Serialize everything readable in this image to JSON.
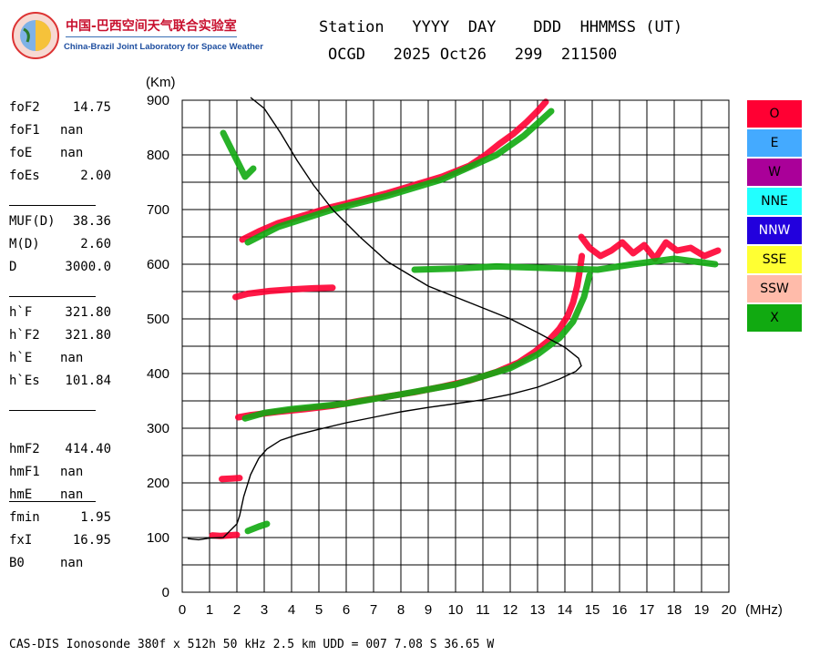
{
  "logo": {
    "org_name_cn": "中国-巴西空间天气联合实验室",
    "org_name_en": "China-Brazil Joint Laboratory for Space Weather"
  },
  "header": {
    "line1": "Station   YYYY  DAY    DDD  HHMMSS (UT)",
    "line2": "OCGD   2025 Oct26   299  211500"
  },
  "parameters": {
    "group1": [
      {
        "key": "foF2",
        "value": "14.75"
      },
      {
        "key": "foF1",
        "value": "nan"
      },
      {
        "key": "foE",
        "value": "nan"
      },
      {
        "key": "foEs",
        "value": "2.00"
      }
    ],
    "group2": [
      {
        "key": "MUF(D)",
        "value": "38.36"
      },
      {
        "key": "M(D)",
        "value": "2.60"
      },
      {
        "key": "D",
        "value": "3000.0"
      }
    ],
    "group3": [
      {
        "key": "h`F",
        "value": "321.80"
      },
      {
        "key": "h`F2",
        "value": "321.80"
      },
      {
        "key": "h`E",
        "value": "nan"
      },
      {
        "key": "h`Es",
        "value": "101.84"
      }
    ],
    "group4": [
      {
        "key": "hmF2",
        "value": "414.40"
      },
      {
        "key": "hmF1",
        "value": "nan"
      },
      {
        "key": "hmE",
        "value": "nan"
      }
    ],
    "group5": [
      {
        "key": "fmin",
        "value": "1.95"
      },
      {
        "key": "fxI",
        "value": "16.95"
      },
      {
        "key": "B0",
        "value": "nan"
      }
    ]
  },
  "legend": [
    {
      "label": "O",
      "color": "#ff0033"
    },
    {
      "label": "E",
      "color": "#44aaff"
    },
    {
      "label": "W",
      "color": "#aa0099"
    },
    {
      "label": "NNE",
      "color": "#22ffff"
    },
    {
      "label": "NNW",
      "color": "#2200dd"
    },
    {
      "label": "SSE",
      "color": "#ffff33"
    },
    {
      "label": "SSW",
      "color": "#ffbbaa"
    },
    {
      "label": "X",
      "color": "#11aa11"
    }
  ],
  "footer": "CAS-DIS Ionosonde 380f x 512h 50 kHz 2.5 km UDD = 007 7.08 S 36.65 W",
  "chart_data": {
    "type": "scatter",
    "ylabel": "(Km)",
    "xlabel": "(MHz)",
    "xlim": [
      0,
      20
    ],
    "ylim": [
      0,
      900
    ],
    "x_ticks": [
      0,
      1,
      2,
      3,
      4,
      5,
      6,
      7,
      8,
      9,
      10,
      11,
      12,
      13,
      14,
      15,
      16,
      17,
      18,
      19,
      20
    ],
    "y_ticks": [
      0,
      100,
      200,
      300,
      400,
      500,
      600,
      700,
      800,
      900
    ],
    "grid": true,
    "series": [
      {
        "name": "O",
        "color": "#ff0033",
        "traces": [
          [
            [
              1.1,
              104
            ],
            [
              1.4,
              103
            ],
            [
              1.7,
              104
            ],
            [
              2.0,
              105
            ]
          ],
          [
            [
              1.45,
              207
            ],
            [
              1.8,
              208
            ],
            [
              2.1,
              209
            ]
          ],
          [
            [
              1.95,
              540
            ],
            [
              2.4,
              546
            ],
            [
              3.2,
              551
            ],
            [
              4.0,
              554
            ],
            [
              4.8,
              556
            ],
            [
              5.5,
              557
            ]
          ],
          [
            [
              2.05,
              320
            ],
            [
              2.5,
              324
            ],
            [
              3.5,
              330
            ],
            [
              4.5,
              335
            ],
            [
              5.5,
              341
            ],
            [
              6.5,
              350
            ],
            [
              7.5,
              358
            ],
            [
              8.5,
              366
            ],
            [
              9.5,
              376
            ],
            [
              10.5,
              387
            ],
            [
              11.5,
              403
            ],
            [
              12.3,
              420
            ],
            [
              12.9,
              440
            ],
            [
              13.4,
              460
            ],
            [
              13.8,
              482
            ],
            [
              14.1,
              505
            ],
            [
              14.3,
              530
            ],
            [
              14.45,
              560
            ],
            [
              14.55,
              590
            ],
            [
              14.62,
              615
            ]
          ],
          [
            [
              2.2,
              645
            ],
            [
              2.8,
              660
            ],
            [
              3.5,
              675
            ],
            [
              4.5,
              690
            ],
            [
              5.5,
              705
            ],
            [
              6.5,
              717
            ],
            [
              7.5,
              730
            ],
            [
              8.5,
              745
            ],
            [
              9.5,
              760
            ],
            [
              10.5,
              780
            ],
            [
              11.1,
              800
            ],
            [
              11.6,
              820
            ],
            [
              12.1,
              838
            ],
            [
              12.6,
              860
            ],
            [
              13.0,
              880
            ],
            [
              13.3,
              897
            ]
          ],
          [
            [
              14.6,
              650
            ],
            [
              14.9,
              630
            ],
            [
              15.3,
              615
            ],
            [
              15.7,
              625
            ],
            [
              16.1,
              640
            ],
            [
              16.5,
              620
            ],
            [
              16.9,
              635
            ],
            [
              17.3,
              610
            ],
            [
              17.7,
              640
            ],
            [
              18.1,
              625
            ],
            [
              18.6,
              630
            ],
            [
              19.1,
              615
            ],
            [
              19.6,
              625
            ]
          ]
        ]
      },
      {
        "name": "X",
        "color": "#11aa11",
        "traces": [
          [
            [
              1.5,
              840
            ],
            [
              2.3,
              760
            ],
            [
              2.6,
              775
            ]
          ],
          [
            [
              2.4,
              112
            ],
            [
              2.8,
              120
            ],
            [
              3.1,
              125
            ]
          ],
          [
            [
              2.3,
              318
            ],
            [
              3.0,
              328
            ],
            [
              4.0,
              335
            ],
            [
              6.0,
              345
            ],
            [
              8.0,
              362
            ],
            [
              10.0,
              380
            ],
            [
              12.0,
              410
            ],
            [
              13.0,
              435
            ],
            [
              13.8,
              465
            ],
            [
              14.3,
              495
            ],
            [
              14.7,
              540
            ],
            [
              14.9,
              580
            ]
          ],
          [
            [
              2.4,
              640
            ],
            [
              3.5,
              668
            ],
            [
              5.5,
              700
            ],
            [
              7.5,
              725
            ],
            [
              9.5,
              755
            ],
            [
              11.5,
              800
            ],
            [
              12.5,
              835
            ],
            [
              13.5,
              880
            ]
          ],
          [
            [
              8.5,
              590
            ],
            [
              10.0,
              592
            ],
            [
              11.5,
              596
            ],
            [
              15.2,
              590
            ],
            [
              16.5,
              600
            ],
            [
              18.0,
              610
            ],
            [
              19.5,
              600
            ]
          ]
        ]
      }
    ],
    "profile_curve": [
      [
        0.2,
        98
      ],
      [
        0.6,
        96
      ],
      [
        1.0,
        99
      ],
      [
        1.5,
        100
      ],
      [
        1.7,
        110
      ],
      [
        2.0,
        125
      ],
      [
        2.1,
        140
      ],
      [
        2.25,
        175
      ],
      [
        2.5,
        215
      ],
      [
        2.8,
        245
      ],
      [
        3.1,
        262
      ],
      [
        3.6,
        278
      ],
      [
        4.2,
        288
      ],
      [
        5.0,
        298
      ],
      [
        6.0,
        310
      ],
      [
        7.0,
        320
      ],
      [
        8.0,
        330
      ],
      [
        9.0,
        338
      ],
      [
        10.0,
        345
      ],
      [
        11.0,
        352
      ],
      [
        12.0,
        362
      ],
      [
        13.0,
        375
      ],
      [
        13.8,
        390
      ],
      [
        14.4,
        404
      ],
      [
        14.6,
        414
      ],
      [
        14.5,
        428
      ],
      [
        14.0,
        448
      ],
      [
        13.0,
        475
      ],
      [
        12.0,
        500
      ],
      [
        10.5,
        530
      ],
      [
        9.0,
        560
      ],
      [
        7.5,
        605
      ],
      [
        6.5,
        650
      ],
      [
        5.5,
        700
      ],
      [
        4.8,
        745
      ],
      [
        4.2,
        790
      ],
      [
        3.6,
        840
      ],
      [
        3.0,
        885
      ],
      [
        2.5,
        905
      ]
    ]
  }
}
